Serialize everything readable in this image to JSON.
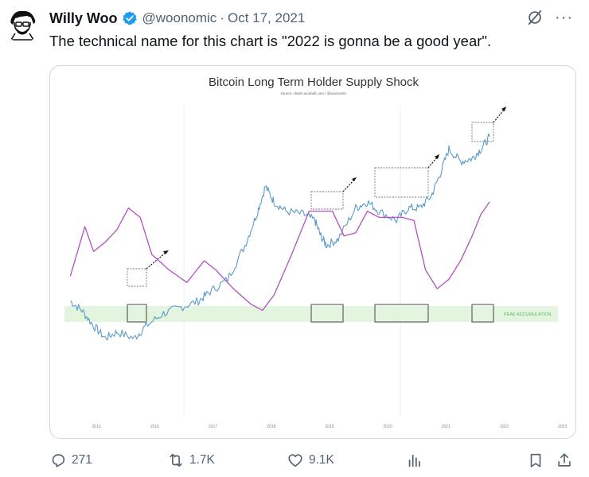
{
  "tweet": {
    "author_name": "Willy Woo",
    "handle": "@woonomic",
    "separator": "·",
    "date": "Oct 17, 2021",
    "text": "The technical name for this chart is \"2022 is gonna be a good year\".",
    "verified_color": "#1d9bf0"
  },
  "header_icons": {
    "grok": "grok-icon",
    "more": "more-icon",
    "more_label": "···"
  },
  "actions": {
    "replies": "271",
    "retweets": "1.7K",
    "likes": "9.1K",
    "icons": [
      "reply-icon",
      "retweet-icon",
      "like-icon",
      "views-icon",
      "bookmark-icon",
      "share-icon"
    ]
  },
  "chart_data": {
    "type": "line",
    "title": "Bitcoin Long Term Holder Supply Shock",
    "source": "source: charts.woobull.com / @woonomic",
    "x_ticks": [
      "2015",
      "2016",
      "2017",
      "2018",
      "2019",
      "2020",
      "2021",
      "2022",
      "2023"
    ],
    "annotation": "PEAK ACCUMULATION",
    "grid": false,
    "colors": {
      "price": "#5a9cc8",
      "supply_shock": "#b34fc4",
      "peak_band": "#e4f5df",
      "peak_label": "#5cb85c"
    },
    "series": [
      {
        "name": "price",
        "x": [
          2014.6,
          2014.8,
          2015.0,
          2015.2,
          2015.4,
          2015.7,
          2015.9,
          2016.2,
          2016.5,
          2016.8,
          2017.0,
          2017.3,
          2017.6,
          2017.8,
          2017.95,
          2018.1,
          2018.3,
          2018.6,
          2018.8,
          2018.9,
          2019.0,
          2019.2,
          2019.5,
          2019.7,
          2019.9,
          2020.2,
          2020.4,
          2020.6,
          2020.8,
          2020.95,
          2021.1,
          2021.3,
          2021.5,
          2021.65,
          2021.8
        ],
        "y": [
          0.37,
          0.34,
          0.29,
          0.25,
          0.27,
          0.25,
          0.29,
          0.33,
          0.35,
          0.37,
          0.4,
          0.44,
          0.55,
          0.65,
          0.74,
          0.69,
          0.66,
          0.65,
          0.63,
          0.58,
          0.55,
          0.57,
          0.67,
          0.69,
          0.66,
          0.63,
          0.67,
          0.67,
          0.71,
          0.78,
          0.86,
          0.82,
          0.83,
          0.86,
          0.9
        ]
      },
      {
        "name": "supply_shock",
        "x": [
          2014.6,
          2014.85,
          2015.0,
          2015.2,
          2015.4,
          2015.6,
          2015.8,
          2016.0,
          2016.3,
          2016.6,
          2016.9,
          2017.1,
          2017.4,
          2017.7,
          2017.9,
          2018.1,
          2018.4,
          2018.7,
          2018.9,
          2019.1,
          2019.3,
          2019.5,
          2019.7,
          2019.9,
          2020.1,
          2020.3,
          2020.5,
          2020.7,
          2020.9,
          2021.1,
          2021.3,
          2021.5,
          2021.65,
          2021.8
        ],
        "y": [
          0.45,
          0.61,
          0.53,
          0.56,
          0.6,
          0.67,
          0.64,
          0.52,
          0.47,
          0.43,
          0.5,
          0.47,
          0.41,
          0.36,
          0.34,
          0.39,
          0.52,
          0.66,
          0.66,
          0.66,
          0.58,
          0.59,
          0.66,
          0.64,
          0.64,
          0.64,
          0.63,
          0.47,
          0.41,
          0.44,
          0.5,
          0.58,
          0.65,
          0.69
        ]
      }
    ]
  }
}
